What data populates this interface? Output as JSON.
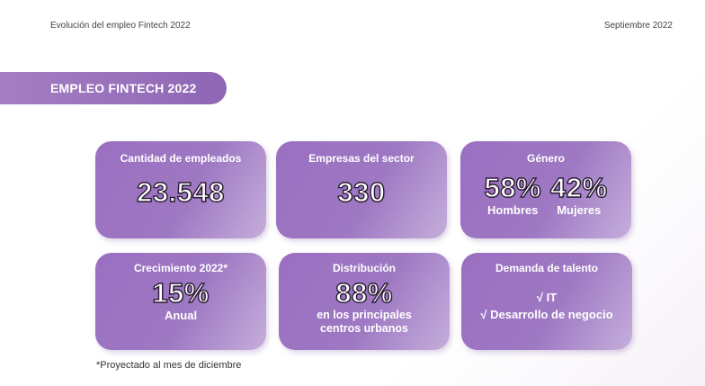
{
  "header": {
    "left_text": "Evolución del empleo Fintech 2022",
    "right_text": "Septiembre 2022"
  },
  "banner": {
    "title": "EMPLEO FINTECH 2022"
  },
  "cards": {
    "employees": {
      "title": "Cantidad de empleados",
      "value": "23.548"
    },
    "companies": {
      "title": "Empresas del sector",
      "value": "330"
    },
    "gender": {
      "title": "Género",
      "men_value": "58%",
      "men_label": "Hombres",
      "women_value": "42%",
      "women_label": "Mujeres"
    },
    "growth": {
      "title": "Crecimiento 2022*",
      "value": "15%",
      "label": "Anual"
    },
    "distribution": {
      "title": "Distribución",
      "value": "88%",
      "label_line1": "en los principales",
      "label_line2": "centros urbanos"
    },
    "talent": {
      "title": "Demanda de talento",
      "items": [
        "√ IT",
        "√ Desarrollo de negocio"
      ]
    }
  },
  "footnote": "*Proyectado al mes de diciembre",
  "colors": {
    "card_purple": "#9a70c1",
    "banner_purple": "#8e66b5"
  }
}
